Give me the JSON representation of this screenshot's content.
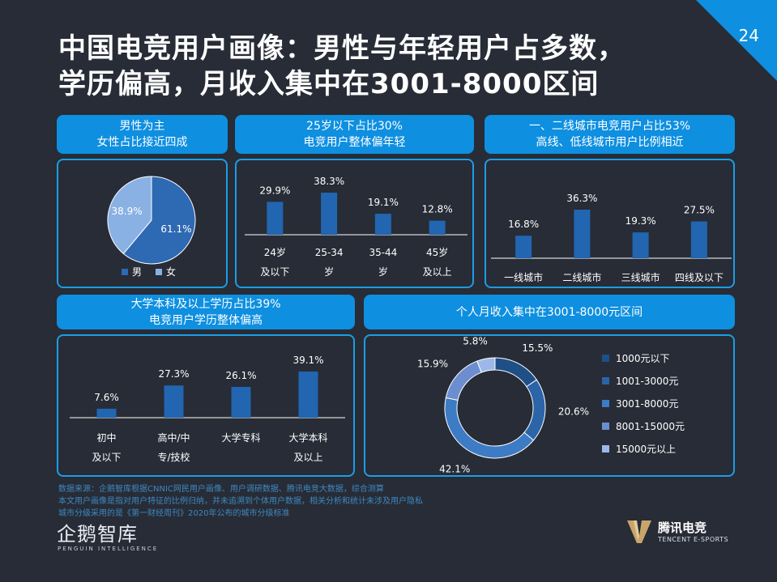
{
  "page_number": "24",
  "title_line1": "中国电竞用户画像：男性与年轻用户占多数，",
  "title_line2": "学历偏高，月收入集中在3001-8000区间",
  "panels": {
    "gender": {
      "header_line1": "男性为主",
      "header_line2": "女性占比接近四成"
    },
    "age": {
      "header_line1": "25岁以下占比30%",
      "header_line2": "电竞用户整体偏年轻"
    },
    "city": {
      "header_line1": "一、二线城市电竞用户占比53%",
      "header_line2": "高线、低线城市用户比例相近"
    },
    "education": {
      "header_line1": "大学本科及以上学历占比39%",
      "header_line2": "电竞用户学历整体偏高"
    },
    "income": {
      "header_line1": "个人月收入集中在3001-8000元区间"
    }
  },
  "colors": {
    "background": "#272c36",
    "accent": "#0e8fe0",
    "bar": "#2265b0",
    "male": "#2e69b3",
    "female": "#8ab1e3",
    "income": [
      "#1e4f86",
      "#2c64a8",
      "#3d7bc5",
      "#6c8ed0",
      "#9db8e8"
    ]
  },
  "chart_data": [
    {
      "type": "pie",
      "labels": [
        "男",
        "女"
      ],
      "values": [
        61.1,
        38.9
      ],
      "data_labels": [
        "61.1%",
        "38.9%"
      ]
    },
    {
      "type": "bar",
      "categories": [
        [
          "24岁",
          "及以下"
        ],
        [
          "25-34",
          "岁"
        ],
        [
          "35-44",
          "岁"
        ],
        [
          "45岁",
          "及以上"
        ]
      ],
      "values": [
        29.9,
        38.3,
        19.1,
        12.8
      ],
      "data_labels": [
        "29.9%",
        "38.3%",
        "19.1%",
        "12.8%"
      ]
    },
    {
      "type": "bar",
      "categories": [
        [
          "一线城市"
        ],
        [
          "二线城市"
        ],
        [
          "三线城市"
        ],
        [
          "四线及以下"
        ]
      ],
      "values": [
        16.8,
        36.3,
        19.3,
        27.5
      ],
      "data_labels": [
        "16.8%",
        "36.3%",
        "19.3%",
        "27.5%"
      ]
    },
    {
      "type": "bar",
      "categories": [
        [
          "初中",
          "及以下"
        ],
        [
          "高中/中",
          "专/技校"
        ],
        [
          "大学专科"
        ],
        [
          "大学本科",
          "及以上"
        ]
      ],
      "values": [
        7.6,
        27.3,
        26.1,
        39.1
      ],
      "data_labels": [
        "7.6%",
        "27.3%",
        "26.1%",
        "39.1%"
      ]
    },
    {
      "type": "pie",
      "labels": [
        "1000元以下",
        "1001-3000元",
        "3001-8000元",
        "8001-15000元",
        "15000元以上"
      ],
      "values": [
        15.5,
        20.6,
        42.1,
        15.9,
        5.8
      ],
      "data_labels": [
        "15.5%",
        "20.6%",
        "42.1%",
        "15.9%",
        "5.8%"
      ],
      "legend_position": "right"
    }
  ],
  "source_lines": [
    "数据来源：企鹅智库根据CNNIC网民用户画像、用户调研数据、腾讯电竞大数据，综合测算",
    "本文用户画像是指对用户特征的比例归纳，并未追溯到个体用户数据，相关分析和统计未涉及用户隐私",
    "城市分级采用的是《第一财经周刊》2020年公布的城市分级标准"
  ],
  "logos": {
    "left_name": "企鹅智库",
    "left_sub": "PENGUIN INTELLIGENCE",
    "right_name": "腾讯电竞",
    "right_sub": "TENCENT E-SPORTS"
  }
}
